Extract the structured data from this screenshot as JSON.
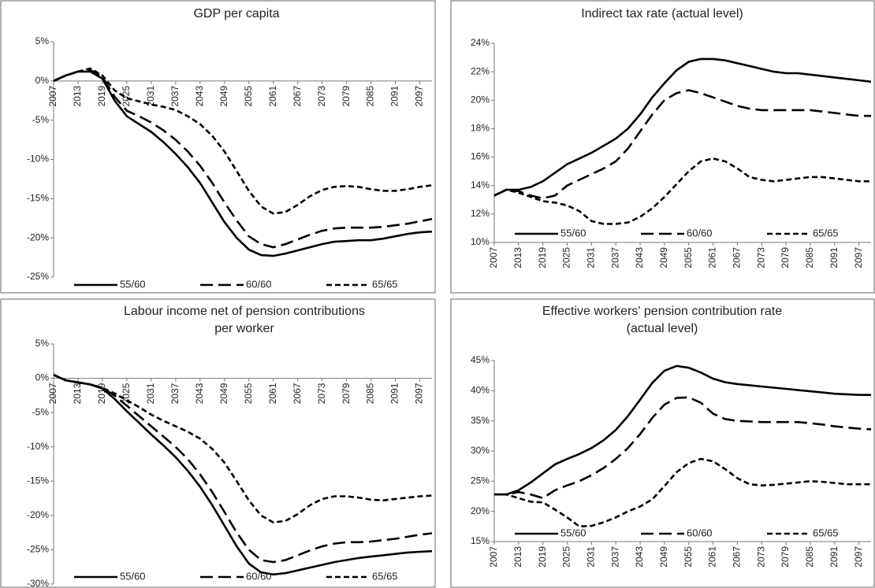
{
  "chart_data": [
    {
      "type": "line",
      "title": [
        "GDP per capita"
      ],
      "x": [
        2007,
        2010,
        2013,
        2016,
        2019,
        2022,
        2025,
        2028,
        2031,
        2034,
        2037,
        2040,
        2043,
        2046,
        2049,
        2052,
        2055,
        2058,
        2061,
        2064,
        2067,
        2070,
        2073,
        2076,
        2079,
        2082,
        2085,
        2088,
        2091,
        2094,
        2097,
        2100
      ],
      "xlim": [
        2007,
        2100
      ],
      "xticks": [
        2007,
        2013,
        2019,
        2025,
        2031,
        2037,
        2043,
        2049,
        2055,
        2061,
        2067,
        2073,
        2079,
        2085,
        2091,
        2097
      ],
      "ylim": [
        -25,
        5
      ],
      "yticks": [
        {
          "value": -25,
          "label": "-25%"
        },
        {
          "value": -20,
          "label": "-20%"
        },
        {
          "value": -15,
          "label": "-15%"
        },
        {
          "value": -10,
          "label": "-10%"
        },
        {
          "value": -5,
          "label": "-5%"
        },
        {
          "value": 0,
          "label": "0%"
        },
        {
          "value": 5,
          "label": "5%"
        }
      ],
      "legend": "bottom",
      "series": [
        {
          "name": "55/60",
          "color": "#000000",
          "dash": "solid",
          "values": [
            0,
            0.7,
            1.2,
            1.2,
            0.3,
            -2.5,
            -4.5,
            -5.5,
            -6.5,
            -7.8,
            -9.3,
            -11,
            -13,
            -15.5,
            -18,
            -20,
            -21.5,
            -22.2,
            -22.3,
            -22,
            -21.6,
            -21.2,
            -20.8,
            -20.5,
            -20.4,
            -20.3,
            -20.3,
            -20.1,
            -19.8,
            -19.5,
            -19.3,
            -19.2
          ]
        },
        {
          "name": "60/60",
          "color": "#000000",
          "dash": "long-dash",
          "values": [
            0,
            0.7,
            1.2,
            1.4,
            0.5,
            -2,
            -3.8,
            -4.5,
            -5.3,
            -6.3,
            -7.5,
            -9,
            -10.8,
            -13,
            -15.5,
            -17.8,
            -19.8,
            -20.8,
            -21.2,
            -20.8,
            -20.2,
            -19.6,
            -19.1,
            -18.8,
            -18.7,
            -18.7,
            -18.7,
            -18.6,
            -18.4,
            -18.2,
            -17.9,
            -17.6
          ]
        },
        {
          "name": "65/65",
          "color": "#000000",
          "dash": "short-dash",
          "values": [
            0,
            0.7,
            1.2,
            1.6,
            0.7,
            -1.2,
            -2.2,
            -2.6,
            -3,
            -3.3,
            -3.7,
            -4.5,
            -5.5,
            -7,
            -9,
            -11.5,
            -14,
            -16,
            -16.9,
            -16.7,
            -15.8,
            -14.7,
            -13.9,
            -13.5,
            -13.4,
            -13.5,
            -13.8,
            -14,
            -14,
            -13.8,
            -13.5,
            -13.3
          ]
        }
      ]
    },
    {
      "type": "line",
      "title": [
        "Indirect tax rate (actual level)"
      ],
      "x": [
        2007,
        2010,
        2013,
        2016,
        2019,
        2022,
        2025,
        2028,
        2031,
        2034,
        2037,
        2040,
        2043,
        2046,
        2049,
        2052,
        2055,
        2058,
        2061,
        2064,
        2067,
        2070,
        2073,
        2076,
        2079,
        2082,
        2085,
        2088,
        2091,
        2094,
        2097,
        2100
      ],
      "xlim": [
        2007,
        2100
      ],
      "xticks": [
        2007,
        2013,
        2019,
        2025,
        2031,
        2037,
        2043,
        2049,
        2055,
        2061,
        2067,
        2073,
        2079,
        2085,
        2091,
        2097
      ],
      "ylim": [
        10,
        24
      ],
      "yticks": [
        {
          "value": 10,
          "label": "10%"
        },
        {
          "value": 12,
          "label": "12%"
        },
        {
          "value": 14,
          "label": "14%"
        },
        {
          "value": 16,
          "label": "16%"
        },
        {
          "value": 18,
          "label": "18%"
        },
        {
          "value": 20,
          "label": "20%"
        },
        {
          "value": 22,
          "label": "22%"
        },
        {
          "value": 24,
          "label": "24%"
        }
      ],
      "legend": "bottom",
      "series": [
        {
          "name": "55/60",
          "color": "#000000",
          "dash": "solid",
          "values": [
            13.3,
            13.7,
            13.7,
            13.9,
            14.3,
            14.9,
            15.5,
            15.9,
            16.3,
            16.8,
            17.3,
            18,
            19,
            20.2,
            21.2,
            22.1,
            22.7,
            22.9,
            22.9,
            22.8,
            22.6,
            22.4,
            22.2,
            22,
            21.9,
            21.9,
            21.8,
            21.7,
            21.6,
            21.5,
            21.4,
            21.3
          ]
        },
        {
          "name": "60/60",
          "color": "#000000",
          "dash": "long-dash",
          "values": [
            13.3,
            13.7,
            13.6,
            13.3,
            13.1,
            13.3,
            14,
            14.4,
            14.8,
            15.2,
            15.7,
            16.6,
            17.8,
            19,
            20,
            20.5,
            20.7,
            20.5,
            20.2,
            19.9,
            19.6,
            19.4,
            19.3,
            19.3,
            19.3,
            19.3,
            19.3,
            19.2,
            19.1,
            19,
            18.9,
            18.9
          ]
        },
        {
          "name": "65/65",
          "color": "#000000",
          "dash": "short-dash",
          "values": [
            13.3,
            13.7,
            13.5,
            13.2,
            12.9,
            12.8,
            12.6,
            12.2,
            11.5,
            11.3,
            11.3,
            11.4,
            11.8,
            12.4,
            13.2,
            14.1,
            15,
            15.7,
            15.9,
            15.7,
            15.2,
            14.6,
            14.4,
            14.3,
            14.4,
            14.5,
            14.6,
            14.6,
            14.5,
            14.4,
            14.3,
            14.3
          ]
        }
      ]
    },
    {
      "type": "line",
      "title": [
        "Labour income net of pension contributions",
        "per worker"
      ],
      "x": [
        2007,
        2010,
        2013,
        2016,
        2019,
        2022,
        2025,
        2028,
        2031,
        2034,
        2037,
        2040,
        2043,
        2046,
        2049,
        2052,
        2055,
        2058,
        2061,
        2064,
        2067,
        2070,
        2073,
        2076,
        2079,
        2082,
        2085,
        2088,
        2091,
        2094,
        2097,
        2100
      ],
      "xlim": [
        2007,
        2100
      ],
      "xticks": [
        2007,
        2013,
        2019,
        2025,
        2031,
        2037,
        2043,
        2049,
        2055,
        2061,
        2067,
        2073,
        2079,
        2085,
        2091,
        2097
      ],
      "ylim": [
        -30,
        5
      ],
      "yticks": [
        {
          "value": -30,
          "label": "-30%"
        },
        {
          "value": -25,
          "label": "-25%"
        },
        {
          "value": -20,
          "label": "-20%"
        },
        {
          "value": -15,
          "label": "-15%"
        },
        {
          "value": -10,
          "label": "-10%"
        },
        {
          "value": -5,
          "label": "-5%"
        },
        {
          "value": 0,
          "label": "0%"
        },
        {
          "value": 5,
          "label": "5%"
        }
      ],
      "legend": "bottom",
      "series": [
        {
          "name": "55/60",
          "color": "#000000",
          "dash": "solid",
          "values": [
            0.5,
            -0.3,
            -0.6,
            -0.9,
            -1.5,
            -3,
            -4.8,
            -6.5,
            -8.2,
            -9.8,
            -11.5,
            -13.5,
            -15.8,
            -18.5,
            -21.5,
            -24.5,
            -27,
            -28.3,
            -28.6,
            -28.4,
            -28,
            -27.6,
            -27.2,
            -26.8,
            -26.5,
            -26.2,
            -26,
            -25.8,
            -25.6,
            -25.4,
            -25.3,
            -25.2
          ]
        },
        {
          "name": "60/60",
          "color": "#000000",
          "dash": "long-dash",
          "values": [
            0.5,
            -0.3,
            -0.6,
            -0.9,
            -1.4,
            -2.5,
            -4,
            -5.5,
            -7,
            -8.5,
            -10,
            -11.8,
            -14,
            -16.6,
            -19.5,
            -22.5,
            -25,
            -26.5,
            -26.8,
            -26.5,
            -25.8,
            -25.1,
            -24.5,
            -24.1,
            -23.9,
            -23.9,
            -23.8,
            -23.6,
            -23.4,
            -23.1,
            -22.8,
            -22.6
          ]
        },
        {
          "name": "65/65",
          "color": "#000000",
          "dash": "short-dash",
          "values": [
            0.5,
            -0.3,
            -0.6,
            -0.9,
            -1.4,
            -2.2,
            -3.2,
            -4.2,
            -5.3,
            -6.2,
            -7,
            -7.8,
            -8.8,
            -10.3,
            -12.3,
            -15,
            -17.8,
            -20,
            -21,
            -20.8,
            -19.8,
            -18.5,
            -17.6,
            -17.2,
            -17.2,
            -17.4,
            -17.7,
            -17.8,
            -17.6,
            -17.4,
            -17.2,
            -17.1
          ]
        }
      ]
    },
    {
      "type": "line",
      "title": [
        "Effective workers' pension contribution rate",
        "(actual level)"
      ],
      "x": [
        2007,
        2010,
        2013,
        2016,
        2019,
        2022,
        2025,
        2028,
        2031,
        2034,
        2037,
        2040,
        2043,
        2046,
        2049,
        2052,
        2055,
        2058,
        2061,
        2064,
        2067,
        2070,
        2073,
        2076,
        2079,
        2082,
        2085,
        2088,
        2091,
        2094,
        2097,
        2100
      ],
      "xlim": [
        2007,
        2100
      ],
      "xticks": [
        2007,
        2013,
        2019,
        2025,
        2031,
        2037,
        2043,
        2049,
        2055,
        2061,
        2067,
        2073,
        2079,
        2085,
        2091,
        2097
      ],
      "ylim": [
        15,
        45
      ],
      "yticks": [
        {
          "value": 15,
          "label": "15%"
        },
        {
          "value": 20,
          "label": "20%"
        },
        {
          "value": 25,
          "label": "25%"
        },
        {
          "value": 30,
          "label": "30%"
        },
        {
          "value": 35,
          "label": "35%"
        },
        {
          "value": 40,
          "label": "40%"
        },
        {
          "value": 45,
          "label": "45%"
        }
      ],
      "legend": "bottom",
      "series": [
        {
          "name": "55/60",
          "color": "#000000",
          "dash": "solid",
          "values": [
            22.8,
            22.8,
            23.5,
            24.8,
            26.3,
            27.8,
            28.7,
            29.5,
            30.5,
            31.8,
            33.5,
            35.8,
            38.5,
            41.3,
            43.3,
            44.1,
            43.8,
            43,
            42,
            41.4,
            41.1,
            40.9,
            40.7,
            40.5,
            40.3,
            40.1,
            39.9,
            39.7,
            39.5,
            39.4,
            39.3,
            39.3
          ]
        },
        {
          "name": "60/60",
          "color": "#000000",
          "dash": "long-dash",
          "values": [
            22.8,
            22.8,
            23.2,
            22.8,
            22.2,
            23.5,
            24.3,
            25,
            26,
            27.2,
            28.7,
            30.5,
            32.8,
            35.5,
            37.7,
            38.8,
            38.9,
            38,
            36.2,
            35.3,
            35,
            34.9,
            34.8,
            34.8,
            34.8,
            34.8,
            34.6,
            34.4,
            34.1,
            33.9,
            33.7,
            33.6
          ]
        },
        {
          "name": "65/65",
          "color": "#000000",
          "dash": "short-dash",
          "values": [
            22.8,
            22.8,
            22.2,
            21.6,
            21.5,
            20.3,
            19,
            17.5,
            17.6,
            18.2,
            19,
            20,
            20.8,
            22,
            24.2,
            26.5,
            28,
            28.7,
            28.3,
            27,
            25.5,
            24.5,
            24.3,
            24.4,
            24.6,
            24.8,
            25,
            24.9,
            24.7,
            24.5,
            24.5,
            24.5
          ]
        }
      ]
    }
  ]
}
